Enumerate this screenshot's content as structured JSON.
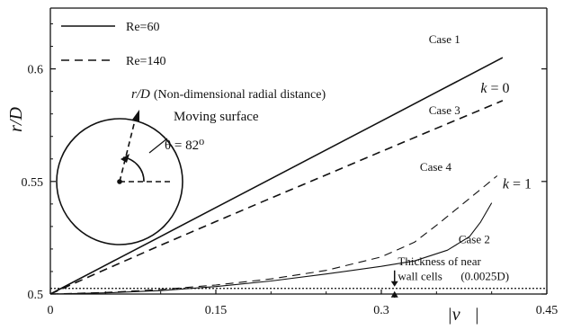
{
  "chart_data": {
    "type": "line",
    "xlabel": "|v⃗|",
    "ylabel": "r/D",
    "xlim": [
      0,
      0.45
    ],
    "ylim": [
      0.5,
      0.627
    ],
    "x_ticks": [
      0,
      0.15,
      0.3,
      0.45
    ],
    "x_tick_labels": [
      "0",
      "0.15",
      "0.3",
      "0.45"
    ],
    "y_ticks": [
      0.5,
      0.55,
      0.6
    ],
    "y_tick_labels": [
      "0.5",
      "0.55",
      "0.6"
    ],
    "grid": false,
    "legend": {
      "placement": "top-left",
      "entries": [
        {
          "label": "Re=60",
          "style": "solid"
        },
        {
          "label": "Re=140",
          "style": "dashed"
        }
      ]
    },
    "series": [
      {
        "name": "Case 1",
        "style": "solid",
        "width": 1.6,
        "x": [
          0,
          0.05,
          0.1,
          0.15,
          0.2,
          0.25,
          0.3,
          0.35,
          0.41
        ],
        "y": [
          0.5,
          0.5128,
          0.5256,
          0.5384,
          0.5512,
          0.564,
          0.5768,
          0.5896,
          0.605
        ]
      },
      {
        "name": "Case 3",
        "style": "dashed",
        "width": 1.6,
        "x": [
          0,
          0.04,
          0.1,
          0.15,
          0.2,
          0.25,
          0.3,
          0.35,
          0.41
        ],
        "y": [
          0.5,
          0.5088,
          0.5217,
          0.5322,
          0.5426,
          0.5529,
          0.5633,
          0.5736,
          0.5859
        ]
      },
      {
        "name": "Case 4",
        "style": "dashed",
        "width": 1.1,
        "x": [
          0,
          0.05,
          0.1,
          0.15,
          0.2,
          0.25,
          0.3,
          0.33,
          0.35,
          0.37,
          0.39,
          0.405
        ],
        "y": [
          0.5,
          0.5007,
          0.502,
          0.504,
          0.5067,
          0.5105,
          0.5165,
          0.523,
          0.5305,
          0.5385,
          0.5465,
          0.5525
        ]
      },
      {
        "name": "Case 2",
        "style": "solid",
        "width": 1.1,
        "x": [
          0,
          0.05,
          0.1,
          0.15,
          0.2,
          0.25,
          0.3,
          0.33,
          0.36,
          0.38,
          0.39,
          0.4
        ],
        "y": [
          0.5,
          0.5005,
          0.5015,
          0.5033,
          0.5058,
          0.5089,
          0.5123,
          0.5147,
          0.5195,
          0.5255,
          0.532,
          0.5405
        ]
      }
    ],
    "reference_line": {
      "y": 0.5025,
      "style": "dotted"
    },
    "annotations": [
      {
        "text": "Case 1",
        "x": 0.343,
        "y": 0.6115
      },
      {
        "text": "Case 3",
        "x": 0.343,
        "y": 0.5799
      },
      {
        "text": "Case 4",
        "x": 0.335,
        "y": 0.5548
      },
      {
        "text": "Case 2",
        "x": 0.37,
        "y": 0.5226
      },
      {
        "text": "k = 0",
        "x": 0.39,
        "y": 0.5895
      },
      {
        "text": "k = 1",
        "x": 0.41,
        "y": 0.547
      },
      {
        "text": "Thickness of near",
        "x": 0.315,
        "y": 0.5127
      },
      {
        "text": "wall cells",
        "x": 0.315,
        "y": 0.5062
      },
      {
        "text": "(0.0025D)",
        "x": 0.372,
        "y": 0.5062
      }
    ],
    "inset": {
      "radial_label": "r/D",
      "radial_label_note": "(Non-dimensional radial distance)",
      "surface_label": "Moving surface",
      "angle_label": "θ = 82⁰"
    }
  }
}
